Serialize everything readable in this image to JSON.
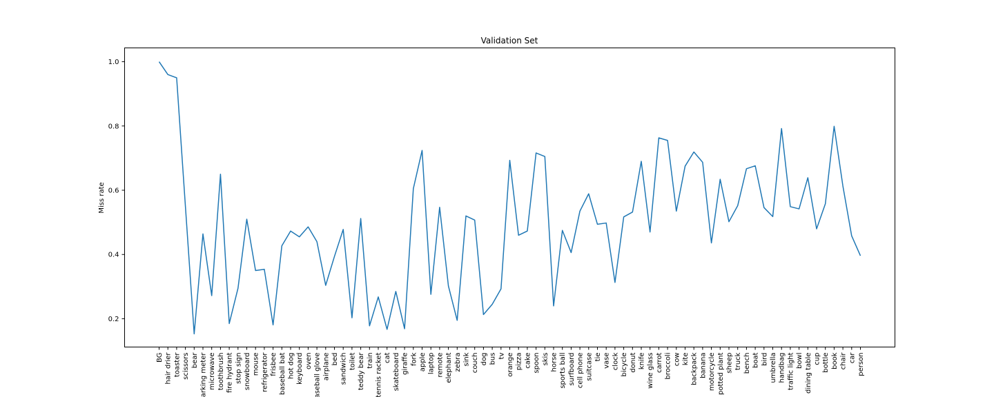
{
  "chart_data": {
    "type": "line",
    "title": "Validation Set",
    "xlabel": "",
    "ylabel": "Miss rate",
    "ylim": [
      0.112,
      1.043
    ],
    "grid": false,
    "legend": "none",
    "line_color": "#1f77b4",
    "y_ticks": [
      "0.2",
      "0.4",
      "0.6",
      "0.8",
      "1.0"
    ],
    "categories": [
      "BG",
      "hair drier",
      "toaster",
      "scissors",
      "bear",
      "parking meter",
      "microwave",
      "toothbrush",
      "fire hydrant",
      "stop sign",
      "snowboard",
      "mouse",
      "refrigerator",
      "frisbee",
      "baseball bat",
      "hot dog",
      "keyboard",
      "oven",
      "baseball glove",
      "airplane",
      "bed",
      "sandwich",
      "toilet",
      "teddy bear",
      "train",
      "tennis racket",
      "cat",
      "skateboard",
      "giraffe",
      "fork",
      "apple",
      "laptop",
      "remote",
      "elephant",
      "zebra",
      "sink",
      "couch",
      "dog",
      "bus",
      "tv",
      "orange",
      "pizza",
      "cake",
      "spoon",
      "skis",
      "horse",
      "sports ball",
      "surfboard",
      "cell phone",
      "suitcase",
      "tie",
      "vase",
      "clock",
      "bicycle",
      "donut",
      "knife",
      "wine glass",
      "carrot",
      "broccoli",
      "cow",
      "kite",
      "backpack",
      "banana",
      "motorcycle",
      "potted plant",
      "sheep",
      "truck",
      "bench",
      "boat",
      "bird",
      "umbrella",
      "handbag",
      "traffic light",
      "bowl",
      "dining table",
      "cup",
      "bottle",
      "book",
      "chair",
      "car",
      "person"
    ],
    "series": [
      {
        "values": [
          1.0,
          0.96,
          0.95,
          0.55,
          0.153,
          0.464,
          0.272,
          0.65,
          0.185,
          0.295,
          0.51,
          0.35,
          0.354,
          0.181,
          0.427,
          0.473,
          0.455,
          0.486,
          0.44,
          0.304,
          0.394,
          0.478,
          0.203,
          0.512,
          0.178,
          0.268,
          0.167,
          0.285,
          0.169,
          0.605,
          0.724,
          0.276,
          0.547,
          0.302,
          0.195,
          0.52,
          0.507,
          0.213,
          0.245,
          0.293,
          0.693,
          0.46,
          0.473,
          0.716,
          0.705,
          0.24,
          0.475,
          0.406,
          0.535,
          0.589,
          0.494,
          0.498,
          0.313,
          0.517,
          0.532,
          0.69,
          0.47,
          0.763,
          0.755,
          0.535,
          0.675,
          0.719,
          0.687,
          0.436,
          0.634,
          0.502,
          0.552,
          0.667,
          0.676,
          0.546,
          0.518,
          0.792,
          0.549,
          0.542,
          0.639,
          0.48,
          0.558,
          0.799,
          0.613,
          0.458,
          0.396
        ]
      }
    ]
  }
}
